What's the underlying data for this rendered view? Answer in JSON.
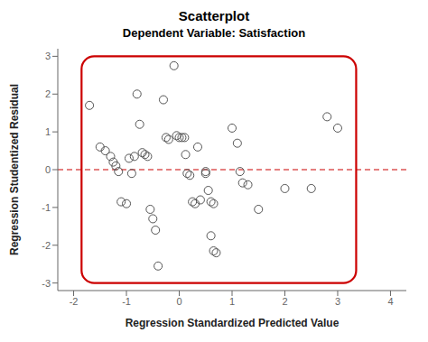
{
  "chart_data": {
    "type": "scatter",
    "title": "Scatterplot",
    "subtitle": "Dependent Variable: Satisfaction",
    "xlabel": "Regression Standardized Predicted Value",
    "ylabel": "Regression Studentized Residual",
    "x": [
      -1.7,
      -1.5,
      -1.4,
      -1.3,
      -1.25,
      -1.2,
      -1.15,
      -1.1,
      -1.0,
      -0.95,
      -0.9,
      -0.85,
      -0.8,
      -0.75,
      -0.7,
      -0.65,
      -0.6,
      -0.55,
      -0.5,
      -0.45,
      -0.4,
      -0.3,
      -0.25,
      -0.2,
      -0.1,
      -0.05,
      0.0,
      0.05,
      0.1,
      0.12,
      0.15,
      0.2,
      0.25,
      0.3,
      0.35,
      0.4,
      0.5,
      0.55,
      0.6,
      0.65,
      0.5,
      0.6,
      0.65,
      0.7,
      1.0,
      1.1,
      1.15,
      1.2,
      1.3,
      1.5,
      2.0,
      2.5,
      2.8,
      3.0
    ],
    "values": [
      1.7,
      0.6,
      0.5,
      0.35,
      0.2,
      0.1,
      -0.05,
      -0.85,
      -0.9,
      0.3,
      -0.1,
      0.35,
      2.0,
      1.2,
      0.45,
      0.4,
      0.35,
      -1.05,
      -1.3,
      -1.6,
      -2.55,
      1.85,
      0.85,
      0.8,
      2.75,
      0.9,
      0.85,
      0.85,
      0.85,
      0.4,
      -0.1,
      -0.15,
      -0.85,
      -0.9,
      0.6,
      -0.8,
      -0.05,
      -0.55,
      -0.85,
      -0.9,
      -0.1,
      -1.75,
      -2.15,
      -2.2,
      1.1,
      0.7,
      -0.05,
      -0.35,
      -0.4,
      -1.05,
      -0.5,
      -0.5,
      1.4,
      1.1
    ],
    "color": "#555555",
    "marker": "circle",
    "xlim": [
      -2.3,
      4.3
    ],
    "ylim": [
      -3.2,
      3.2
    ],
    "xticks": [
      -2,
      -1,
      0,
      1,
      2,
      3,
      4
    ],
    "yticks": [
      -3,
      -2,
      -1,
      0,
      1,
      2,
      3
    ],
    "grid": false,
    "hline": {
      "y": 0,
      "color": "#cc0000",
      "line_style": "dashed"
    },
    "rect": {
      "x": -1.85,
      "y": -3.0,
      "width": 5.2,
      "height": 6.0,
      "color": "#cc0000"
    }
  }
}
